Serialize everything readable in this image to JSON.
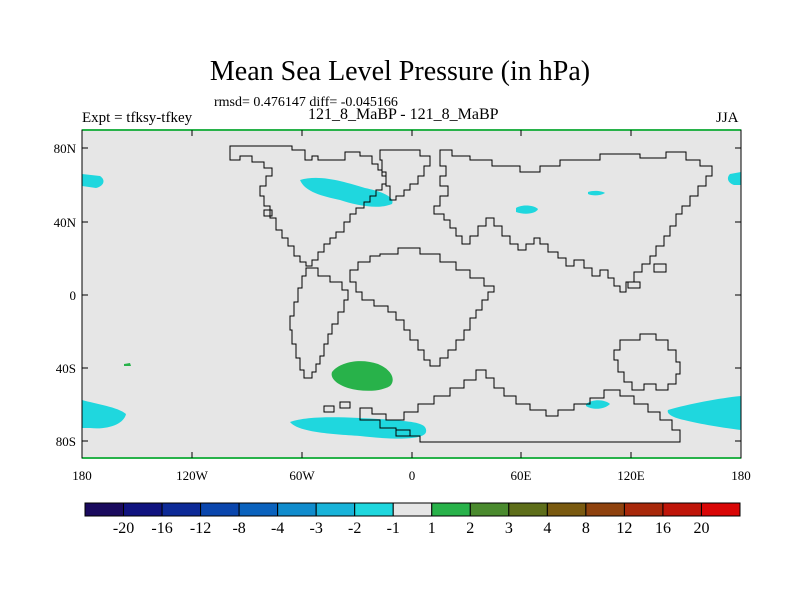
{
  "header": {
    "title": "Mean Sea Level Pressure (in hPa)",
    "stats": "rmsd= 0.476147 diff= -0.045166",
    "expt": "Expt = tfksy-tfkey",
    "experiment_label": "121_8_MaBP - 121_8_MaBP",
    "season": "JJA"
  },
  "axes": {
    "lat_ticks": [
      "80N",
      "40N",
      "0",
      "40S",
      "80S"
    ],
    "lon_ticks": [
      "180",
      "120W",
      "60W",
      "0",
      "60E",
      "120E",
      "180"
    ]
  },
  "colorbar": {
    "labels": [
      "-20",
      "-16",
      "-12",
      "-8",
      "-4",
      "-3",
      "-2",
      "-1",
      "1",
      "2",
      "3",
      "4",
      "8",
      "12",
      "16",
      "20"
    ],
    "colors": [
      "#1a0a5e",
      "#10137f",
      "#0d2a97",
      "#0a46ad",
      "#0a62bd",
      "#108ccd",
      "#18b3d9",
      "#1fd7de",
      "#e6e6e6",
      "#28b24a",
      "#4a8a2e",
      "#5e6e1a",
      "#7a5a10",
      "#8f420e",
      "#a8280a",
      "#bf1509",
      "#d90606"
    ]
  },
  "map": {
    "background_color": "#e6e6e6",
    "coastline_color": "#000000"
  },
  "anomalies": [
    {
      "name": "north-atlantic-negative",
      "value_class": "-1 to -2",
      "color": "#1fd7de"
    },
    {
      "name": "north-pacific-west-negative",
      "value_class": "-1 to -2",
      "color": "#1fd7de"
    },
    {
      "name": "north-pacific-east-negative",
      "value_class": "-1 to -2",
      "color": "#1fd7de"
    },
    {
      "name": "asia-negative",
      "value_class": "-1 to -2",
      "color": "#1fd7de"
    },
    {
      "name": "siberia-negative",
      "value_class": "-1 to -2",
      "color": "#1fd7de"
    },
    {
      "name": "south-atlantic-positive",
      "value_class": "1 to 2",
      "color": "#28b24a"
    },
    {
      "name": "southern-ocean-negative",
      "value_class": "-1 to -2",
      "color": "#1fd7de"
    }
  ]
}
